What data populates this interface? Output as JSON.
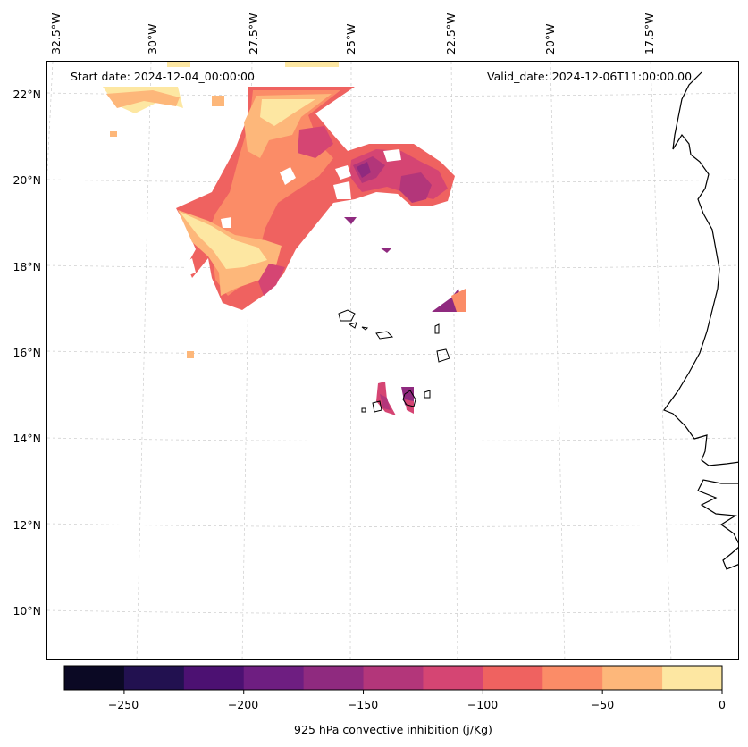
{
  "header": {
    "start_date": "Start date: 2024-12-04_00:00:00",
    "valid_date": "Valid_date: 2024-12-06T11:00:00.00"
  },
  "axes": {
    "longitude_labels": [
      "32.5°W",
      "30°W",
      "27.5°W",
      "25°W",
      "22.5°W",
      "20°W",
      "17.5°W"
    ],
    "latitude_labels": [
      "22°N",
      "20°N",
      "18°N",
      "16°N",
      "14°N",
      "12°N",
      "10°N"
    ]
  },
  "colorbar": {
    "label": "925 hPa convective inhibition (j/Kg)",
    "ticks": [
      "−250",
      "−200",
      "−150",
      "−100",
      "−50",
      "0"
    ],
    "colors": [
      "#0b0924",
      "#221150",
      "#4c1172",
      "#6e1e81",
      "#8f2a7f",
      "#b3367a",
      "#d54573",
      "#ef6260",
      "#fb8c67",
      "#fdb77a",
      "#fde7a2"
    ],
    "min": -275,
    "max": 0,
    "step": 25
  },
  "map_features": {
    "field": "925 hPa convective inhibition",
    "landmass": "West African coastline",
    "islands": "Cape Verde Islands"
  }
}
